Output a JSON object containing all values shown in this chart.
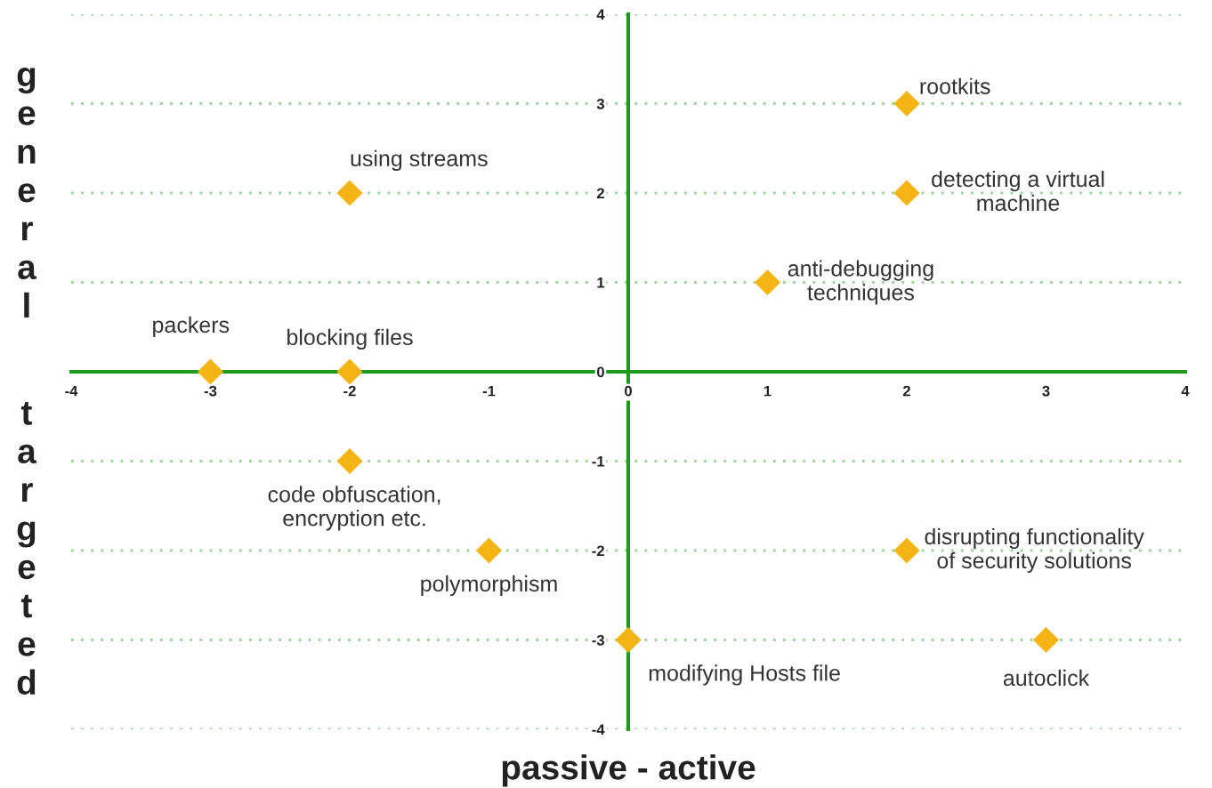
{
  "chart_data": {
    "type": "scatter",
    "xlabel": "passive - active",
    "ylabel": "general targeted",
    "x": [
      -3,
      -2,
      -2,
      -2,
      -1,
      0,
      2,
      2,
      1,
      2,
      3
    ],
    "series": [
      {
        "color": "#f4b414",
        "values": [
          0,
          0,
          2,
          -1,
          -2,
          -3,
          3,
          2,
          1,
          -2,
          -3
        ]
      }
    ],
    "marker": "diamond",
    "grid": "y",
    "xlim": [
      -4,
      4
    ],
    "ylim": [
      -4,
      4
    ],
    "xticks": [
      -4,
      -3,
      -2,
      -1,
      0,
      1,
      2,
      3,
      4
    ],
    "yticks": [
      -4,
      -3,
      -2,
      -1,
      0,
      1,
      2,
      3,
      4
    ],
    "annotations": [
      {
        "text": "packers",
        "x": -3,
        "y": 0
      },
      {
        "text": "blocking files",
        "x": -2,
        "y": 0
      },
      {
        "text": "using streams",
        "x": -2,
        "y": 2
      },
      {
        "text": "code obfuscation,\nencryption etc.",
        "x": -2,
        "y": -1
      },
      {
        "text": "polymorphism",
        "x": -1,
        "y": -2
      },
      {
        "text": "modifying Hosts file",
        "x": 0,
        "y": -3
      },
      {
        "text": "rootkits",
        "x": 2,
        "y": 3
      },
      {
        "text": "detecting a virtual\nmachine",
        "x": 2,
        "y": 2
      },
      {
        "text": "anti-debugging\ntechniques",
        "x": 1,
        "y": 1
      },
      {
        "text": "disrupting functionality\nof security solutions",
        "x": 2,
        "y": -2
      },
      {
        "text": "autoclick",
        "x": 3,
        "y": -3
      }
    ]
  }
}
